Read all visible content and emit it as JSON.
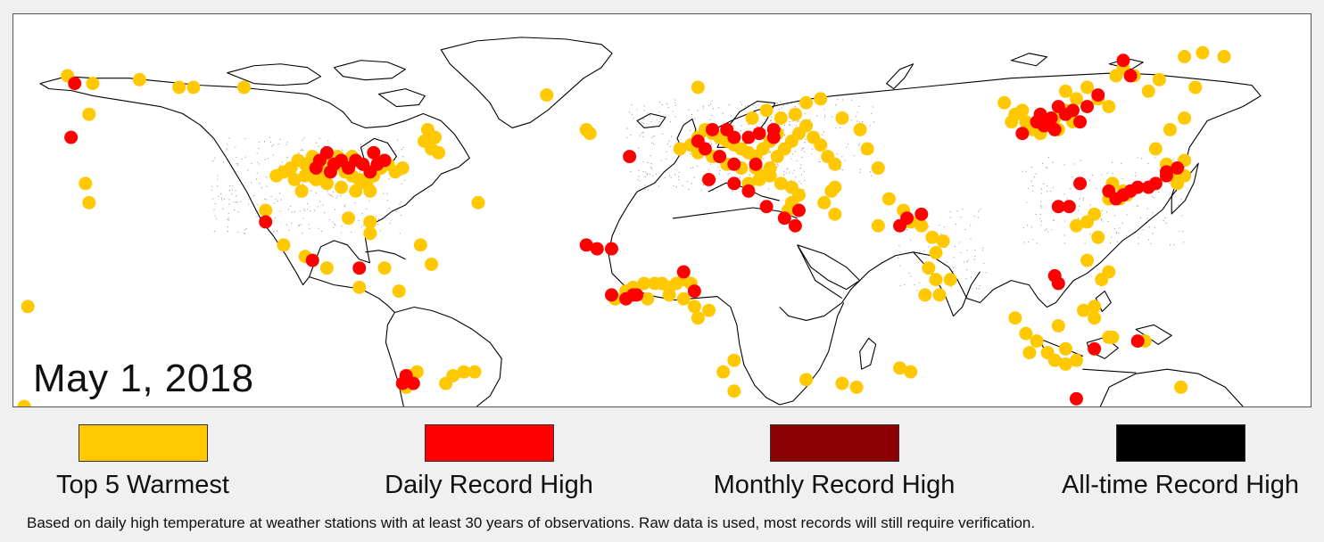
{
  "map": {
    "date_label": "May 1, 2018",
    "projection": "equirectangular",
    "layers": [
      "coastlines",
      "station-density-stipple"
    ]
  },
  "colors": {
    "top5": "#ffc800",
    "daily": "#ff0000",
    "monthly": "#8b0000",
    "alltime": "#000000",
    "background": "#f0f0f0",
    "land": "#ffffff",
    "coast": "#000000",
    "stations": "#999999"
  },
  "legend": [
    {
      "key": "top5",
      "label": "Top 5 Warmest"
    },
    {
      "key": "daily",
      "label": "Daily Record High"
    },
    {
      "key": "monthly",
      "label": "Monthly Record High"
    },
    {
      "key": "alltime",
      "label": "All-time Record High"
    }
  ],
  "footnote": "Based on daily high temperature at weather stations with at least 30 years of observations.  Raw data is used, most records will still require verification.",
  "markers": {
    "top5": [
      [
        -165,
        66
      ],
      [
        -158,
        64
      ],
      [
        -145,
        65
      ],
      [
        -134,
        63
      ],
      [
        -130,
        63
      ],
      [
        -116,
        63
      ],
      [
        -159,
        56
      ],
      [
        -107,
        40
      ],
      [
        -105,
        41
      ],
      [
        -103,
        42
      ],
      [
        -101,
        44
      ],
      [
        -99,
        43
      ],
      [
        -97,
        45
      ],
      [
        -95,
        44
      ],
      [
        -94,
        41
      ],
      [
        -92,
        44
      ],
      [
        -90,
        43
      ],
      [
        -88,
        41
      ],
      [
        -86,
        40
      ],
      [
        -84,
        39
      ],
      [
        -82,
        38
      ],
      [
        -80,
        40
      ],
      [
        -78,
        42
      ],
      [
        -76,
        43
      ],
      [
        -96,
        39
      ],
      [
        -93,
        38
      ],
      [
        -89,
        37
      ],
      [
        -85,
        36
      ],
      [
        -81,
        36
      ],
      [
        -99,
        40
      ],
      [
        -102,
        39
      ],
      [
        -90,
        45
      ],
      [
        -86,
        45
      ],
      [
        -74,
        41
      ],
      [
        -72,
        42
      ],
      [
        -100,
        36
      ],
      [
        -66,
        49
      ],
      [
        -65,
        52
      ],
      [
        -63,
        50
      ],
      [
        -62,
        46
      ],
      [
        -64,
        47
      ],
      [
        -110,
        31
      ],
      [
        -105,
        22
      ],
      [
        -99,
        19
      ],
      [
        -93,
        16
      ],
      [
        -84,
        11
      ],
      [
        -77,
        16
      ],
      [
        -81,
        28
      ],
      [
        -81,
        25
      ],
      [
        -87,
        29
      ],
      [
        -73,
        10
      ],
      [
        -67,
        22
      ],
      [
        -64,
        17
      ],
      [
        -51,
        33
      ],
      [
        -176,
        6
      ],
      [
        -60,
        -14
      ],
      [
        -58,
        -12
      ],
      [
        -55,
        -11
      ],
      [
        -52,
        -11
      ],
      [
        -13,
        8
      ],
      [
        -10,
        10
      ],
      [
        -8,
        11
      ],
      [
        -5,
        12
      ],
      [
        -2,
        12
      ],
      [
        0,
        12
      ],
      [
        2,
        11
      ],
      [
        4,
        12
      ],
      [
        6,
        13
      ],
      [
        8,
        12
      ],
      [
        2,
        9
      ],
      [
        -4,
        8
      ],
      [
        6,
        8
      ],
      [
        9,
        6
      ],
      [
        10,
        3
      ],
      [
        13,
        5
      ],
      [
        17,
        -11
      ],
      [
        20,
        -8
      ],
      [
        -20,
        51
      ],
      [
        -21,
        52
      ],
      [
        -32,
        61
      ],
      [
        10,
        63
      ],
      [
        5,
        47
      ],
      [
        8,
        48
      ],
      [
        10,
        50
      ],
      [
        12,
        52
      ],
      [
        14,
        51
      ],
      [
        16,
        50
      ],
      [
        18,
        49
      ],
      [
        20,
        48
      ],
      [
        22,
        47
      ],
      [
        24,
        46
      ],
      [
        26,
        45
      ],
      [
        28,
        47
      ],
      [
        30,
        49
      ],
      [
        32,
        51
      ],
      [
        10,
        46
      ],
      [
        14,
        45
      ],
      [
        18,
        43
      ],
      [
        22,
        42
      ],
      [
        26,
        42
      ],
      [
        28,
        40
      ],
      [
        30,
        42
      ],
      [
        32,
        45
      ],
      [
        34,
        47
      ],
      [
        36,
        49
      ],
      [
        38,
        51
      ],
      [
        40,
        53
      ],
      [
        42,
        50
      ],
      [
        44,
        48
      ],
      [
        46,
        45
      ],
      [
        48,
        43
      ],
      [
        24,
        38
      ],
      [
        27,
        39
      ],
      [
        30,
        40
      ],
      [
        33,
        38
      ],
      [
        36,
        37
      ],
      [
        38,
        35
      ],
      [
        36,
        33
      ],
      [
        35,
        31
      ],
      [
        45,
        33
      ],
      [
        48,
        30
      ],
      [
        25,
        55
      ],
      [
        29,
        57
      ],
      [
        33,
        55
      ],
      [
        37,
        56
      ],
      [
        40,
        59
      ],
      [
        44,
        60
      ],
      [
        50,
        55
      ],
      [
        55,
        52
      ],
      [
        57,
        47
      ],
      [
        60,
        42
      ],
      [
        48,
        37
      ],
      [
        47,
        36
      ],
      [
        63,
        34
      ],
      [
        67,
        31
      ],
      [
        69,
        28
      ],
      [
        72,
        27
      ],
      [
        75,
        24
      ],
      [
        76,
        20
      ],
      [
        74,
        16
      ],
      [
        76,
        13
      ],
      [
        73,
        9
      ],
      [
        80,
        13
      ],
      [
        77,
        9
      ],
      [
        78,
        23
      ],
      [
        60,
        27
      ],
      [
        95,
        59
      ],
      [
        98,
        56
      ],
      [
        101,
        54
      ],
      [
        103,
        52
      ],
      [
        105,
        51
      ],
      [
        107,
        53
      ],
      [
        109,
        55
      ],
      [
        110,
        52
      ],
      [
        112,
        57
      ],
      [
        114,
        54
      ],
      [
        115,
        60
      ],
      [
        112,
        62
      ],
      [
        118,
        63
      ],
      [
        121,
        60
      ],
      [
        124,
        58
      ],
      [
        97,
        54
      ],
      [
        100,
        57
      ],
      [
        128,
        68
      ],
      [
        126,
        66
      ],
      [
        131,
        66
      ],
      [
        135,
        62
      ],
      [
        138,
        65
      ],
      [
        145,
        71
      ],
      [
        150,
        72
      ],
      [
        156,
        71
      ],
      [
        148,
        63
      ],
      [
        145,
        55
      ],
      [
        141,
        52
      ],
      [
        137,
        47
      ],
      [
        140,
        43
      ],
      [
        142,
        40
      ],
      [
        143,
        38
      ],
      [
        145,
        40
      ],
      [
        145,
        44
      ],
      [
        125,
        38
      ],
      [
        128,
        36
      ],
      [
        127,
        34
      ],
      [
        129,
        35
      ],
      [
        124,
        34
      ],
      [
        120,
        30
      ],
      [
        118,
        28
      ],
      [
        115,
        27
      ],
      [
        121,
        24
      ],
      [
        118,
        18
      ],
      [
        124,
        15
      ],
      [
        122,
        13
      ],
      [
        120,
        6
      ],
      [
        117,
        5
      ],
      [
        120,
        3
      ],
      [
        110,
        1
      ],
      [
        107,
        -6
      ],
      [
        112,
        -5
      ],
      [
        102,
        -6
      ],
      [
        98,
        3
      ],
      [
        101,
        -1
      ],
      [
        104,
        -3
      ],
      [
        109,
        -8
      ],
      [
        112,
        -5
      ],
      [
        124,
        -2
      ],
      [
        134,
        -3
      ],
      [
        144,
        -15
      ],
      [
        125,
        -2
      ],
      [
        112,
        -9
      ],
      [
        115,
        -8
      ],
      [
        69,
        -11
      ],
      [
        66,
        -10
      ],
      [
        54,
        -15
      ],
      [
        50,
        -14
      ],
      [
        40,
        -13
      ],
      [
        20,
        -16
      ],
      [
        -177,
        -20
      ],
      [
        -160,
        38
      ],
      [
        -159,
        33
      ],
      [
        -71,
        -15
      ],
      [
        -70,
        -12
      ],
      [
        -68,
        -11
      ]
    ],
    "daily": [
      [
        -163,
        64
      ],
      [
        -164,
        50
      ],
      [
        -95,
        44
      ],
      [
        -93,
        46
      ],
      [
        -91,
        43
      ],
      [
        -89,
        44
      ],
      [
        -87,
        42
      ],
      [
        -85,
        44
      ],
      [
        -83,
        43
      ],
      [
        -81,
        41
      ],
      [
        -79,
        43
      ],
      [
        -77,
        44
      ],
      [
        -80,
        46
      ],
      [
        -96,
        42
      ],
      [
        -92,
        41
      ],
      [
        -110,
        28
      ],
      [
        -97,
        18
      ],
      [
        -84,
        16
      ],
      [
        -9,
        45
      ],
      [
        13,
        39
      ],
      [
        -14,
        9
      ],
      [
        -10,
        8
      ],
      [
        -8,
        9
      ],
      [
        -7,
        9
      ],
      [
        6,
        15
      ],
      [
        9,
        10
      ],
      [
        10,
        49
      ],
      [
        14,
        52
      ],
      [
        18,
        52
      ],
      [
        20,
        50
      ],
      [
        24,
        50
      ],
      [
        27,
        51
      ],
      [
        31,
        52
      ],
      [
        12,
        47
      ],
      [
        16,
        45
      ],
      [
        20,
        43
      ],
      [
        26,
        43
      ],
      [
        20,
        38
      ],
      [
        24,
        36
      ],
      [
        29,
        32
      ],
      [
        34,
        29
      ],
      [
        38,
        31
      ],
      [
        37,
        27
      ],
      [
        -21,
        22
      ],
      [
        -18,
        21
      ],
      [
        -14,
        21
      ],
      [
        31,
        50
      ],
      [
        66,
        27
      ],
      [
        68,
        29
      ],
      [
        72,
        30
      ],
      [
        113,
        32
      ],
      [
        110,
        32
      ],
      [
        104,
        54
      ],
      [
        106,
        53
      ],
      [
        108,
        55
      ],
      [
        110,
        58
      ],
      [
        112,
        56
      ],
      [
        114,
        57
      ],
      [
        116,
        54
      ],
      [
        118,
        58
      ],
      [
        100,
        51
      ],
      [
        105,
        56
      ],
      [
        109,
        52
      ],
      [
        121,
        61
      ],
      [
        128,
        70
      ],
      [
        130,
        66
      ],
      [
        143,
        42
      ],
      [
        140,
        41
      ],
      [
        137,
        38
      ],
      [
        135,
        37
      ],
      [
        132,
        37
      ],
      [
        130,
        36
      ],
      [
        128,
        35
      ],
      [
        126,
        34
      ],
      [
        124,
        36
      ],
      [
        140,
        40
      ],
      [
        116,
        38
      ],
      [
        110,
        12
      ],
      [
        109,
        14
      ],
      [
        120,
        -5
      ],
      [
        132,
        -3
      ],
      [
        115,
        -18
      ],
      [
        -71,
        -12
      ],
      [
        -72,
        -14
      ],
      [
        -69,
        -14
      ],
      [
        -178,
        -23
      ]
    ],
    "monthly": [],
    "alltime": []
  }
}
